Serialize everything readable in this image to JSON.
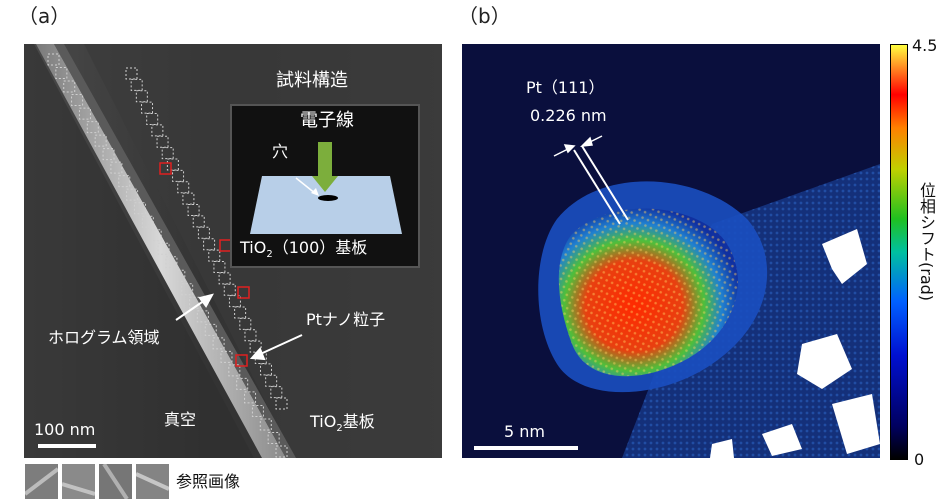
{
  "panel_a": {
    "label": "（a）",
    "title": "試料構造",
    "hologram_region": "ホログラム領域",
    "pt_nanoparticle": "Ptナノ粒子",
    "vacuum": "真空",
    "substrate": "TiO",
    "substrate_sub": "2",
    "substrate_suffix": "基板",
    "scale_bar": "100 nm",
    "inset": {
      "electron_beam": "電子線",
      "hole": "穴",
      "substrate": "TiO",
      "substrate_sub": "2",
      "substrate_suffix": "（100）基板"
    },
    "reference_images": "参照画像"
  },
  "panel_b": {
    "label": "（b）",
    "lattice_label_1": "Pt（111）",
    "lattice_label_2": "0.226 nm",
    "scale_bar": "5 nm"
  },
  "colorbar": {
    "max": "4.5",
    "min": "0",
    "label": "位相シフト(rad)"
  },
  "colors": {
    "tem_background": "#3a3a3a",
    "phase_low": "#000040",
    "phase_high": "#ff0000",
    "marker_red": "#e02020"
  }
}
